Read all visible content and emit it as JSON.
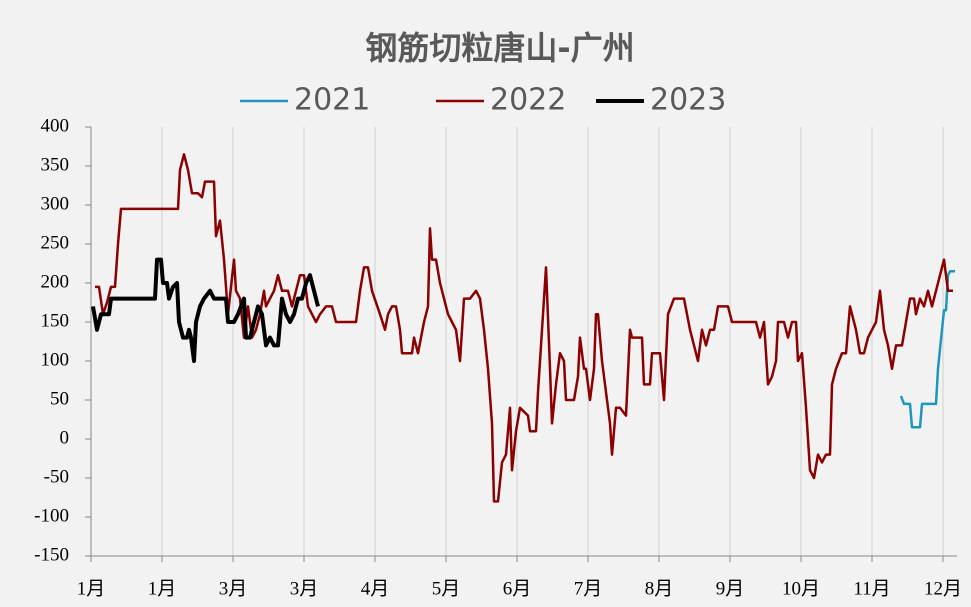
{
  "chart_data": {
    "type": "line",
    "title": "钢筋切粒唐山-广州",
    "xlim": [
      0,
      866
    ],
    "xticks": [
      {
        "value": 0,
        "label": "1月"
      },
      {
        "value": 71,
        "label": "1月"
      },
      {
        "value": 142,
        "label": "3月"
      },
      {
        "value": 213,
        "label": "3月"
      },
      {
        "value": 284,
        "label": "4月"
      },
      {
        "value": 355,
        "label": "5月"
      },
      {
        "value": 426,
        "label": "6月"
      },
      {
        "value": 497,
        "label": "7月"
      },
      {
        "value": 568,
        "label": "8月"
      },
      {
        "value": 639,
        "label": "9月"
      },
      {
        "value": 710,
        "label": "10月"
      },
      {
        "value": 781,
        "label": "11月"
      },
      {
        "value": 852,
        "label": "12月"
      }
    ],
    "ylim": [
      -150,
      400
    ],
    "yticks": [
      -150,
      -100,
      -50,
      0,
      50,
      100,
      150,
      200,
      250,
      300,
      350,
      400
    ],
    "grid": true,
    "series": [
      {
        "name": "2021",
        "color": "#1f97bd",
        "width": 2.5,
        "x": [
          810,
          813,
          819,
          821,
          829,
          831,
          845,
          847,
          851,
          853,
          855,
          857,
          859,
          864
        ],
        "values": [
          55,
          45,
          45,
          15,
          15,
          45,
          45,
          90,
          140,
          165,
          165,
          210,
          215,
          215
        ]
      },
      {
        "name": "2022",
        "color": "#8b0000",
        "width": 2.5,
        "x": [
          4,
          8,
          12,
          16,
          20,
          24,
          27,
          30,
          87,
          89,
          93,
          97,
          101,
          107,
          111,
          114,
          123,
          125,
          129,
          133,
          137,
          143,
          145,
          149,
          153,
          157,
          161,
          165,
          169,
          173,
          175,
          179,
          183,
          187,
          191,
          197,
          201,
          205,
          209,
          213,
          217,
          221,
          225,
          229,
          235,
          241,
          245,
          265,
          269,
          273,
          277,
          281,
          289,
          294,
          297,
          301,
          305,
          309,
          311,
          321,
          323,
          327,
          333,
          337,
          339,
          341,
          345,
          349,
          353,
          357,
          361,
          365,
          369,
          373,
          379,
          385,
          389,
          393,
          397,
          401,
          403,
          407,
          411,
          415,
          419,
          421,
          425,
          429,
          433,
          437,
          439,
          445,
          447,
          451,
          455,
          459,
          461,
          465,
          469,
          473,
          475,
          483,
          487,
          489,
          493,
          495,
          499,
          503,
          505,
          507,
          511,
          515,
          519,
          521,
          525,
          529,
          535,
          539,
          541,
          551,
          553,
          559,
          561,
          569,
          573,
          577,
          583,
          593,
          599,
          607,
          611,
          615,
          619,
          623,
          627,
          637,
          641,
          665,
          669,
          673,
          677,
          681,
          685,
          687,
          693,
          697,
          701,
          705,
          707,
          711,
          715,
          719,
          723,
          727,
          731,
          735,
          739,
          741,
          745,
          751,
          755,
          759,
          765,
          769,
          773,
          777,
          781,
          785,
          789,
          793,
          797,
          801,
          805,
          811,
          815,
          819,
          823,
          825,
          829,
          833,
          837,
          841,
          845,
          849,
          853,
          857,
          862
        ],
        "values": [
          195,
          195,
          160,
          175,
          195,
          195,
          250,
          295,
          295,
          345,
          365,
          345,
          315,
          315,
          310,
          330,
          330,
          260,
          280,
          230,
          160,
          230,
          190,
          180,
          130,
          170,
          130,
          140,
          160,
          190,
          170,
          180,
          190,
          210,
          190,
          190,
          170,
          190,
          210,
          210,
          170,
          160,
          150,
          160,
          170,
          170,
          150,
          150,
          190,
          220,
          220,
          190,
          160,
          140,
          160,
          170,
          170,
          140,
          110,
          110,
          130,
          110,
          150,
          170,
          270,
          230,
          230,
          200,
          180,
          160,
          150,
          140,
          100,
          180,
          180,
          190,
          180,
          140,
          90,
          20,
          -80,
          -80,
          -30,
          -20,
          40,
          -40,
          10,
          40,
          35,
          30,
          10,
          10,
          60,
          140,
          220,
          90,
          20,
          70,
          110,
          100,
          50,
          50,
          80,
          130,
          90,
          90,
          50,
          90,
          160,
          160,
          100,
          60,
          20,
          -20,
          40,
          40,
          30,
          140,
          130,
          130,
          70,
          70,
          110,
          110,
          50,
          160,
          180,
          180,
          140,
          100,
          140,
          120,
          140,
          140,
          170,
          170,
          150,
          150,
          130,
          150,
          70,
          80,
          100,
          150,
          150,
          130,
          150,
          150,
          100,
          110,
          40,
          -40,
          -50,
          -20,
          -30,
          -20,
          -20,
          70,
          90,
          110,
          110,
          170,
          140,
          110,
          110,
          130,
          140,
          150,
          190,
          140,
          120,
          90,
          120,
          120,
          150,
          180,
          180,
          160,
          180,
          170,
          190,
          170,
          190,
          210,
          230,
          190,
          190
        ]
      },
      {
        "name": "2023",
        "color": "#000000",
        "width": 4,
        "x": [
          2,
          6,
          10,
          14,
          18,
          20,
          64,
          66,
          70,
          72,
          76,
          78,
          82,
          86,
          88,
          92,
          96,
          98,
          100,
          103,
          105,
          109,
          113,
          119,
          123,
          135,
          137,
          143,
          147,
          153,
          155,
          159,
          163,
          167,
          171,
          175,
          179,
          183,
          187,
          191,
          195,
          199,
          203,
          207,
          211,
          215,
          219,
          223,
          227
        ],
        "values": [
          170,
          140,
          160,
          160,
          160,
          180,
          180,
          230,
          230,
          200,
          200,
          180,
          195,
          200,
          150,
          130,
          130,
          140,
          130,
          100,
          150,
          170,
          180,
          190,
          180,
          180,
          150,
          150,
          160,
          180,
          130,
          130,
          150,
          170,
          160,
          120,
          130,
          120,
          120,
          180,
          160,
          150,
          160,
          180,
          180,
          200,
          210,
          190,
          170
        ]
      }
    ]
  }
}
